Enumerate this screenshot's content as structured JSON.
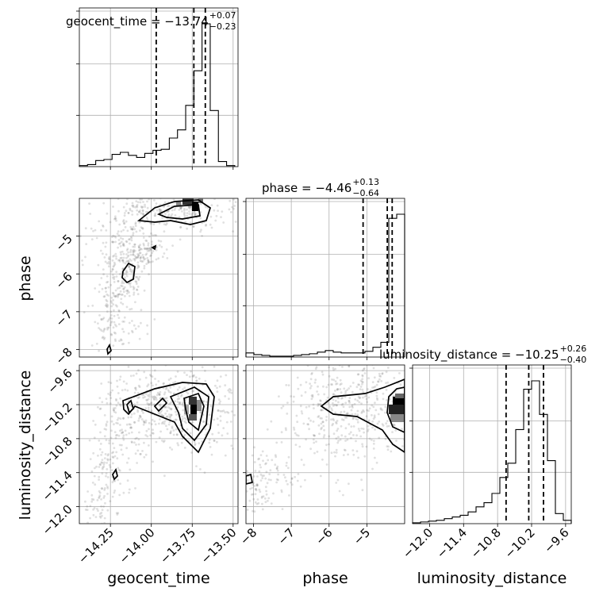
{
  "chart_data": {
    "type": "corner",
    "parameters": [
      {
        "name": "geocent_time",
        "range": [
          -14.44,
          -13.47
        ],
        "ticks": [
          -14.25,
          -14.0,
          -13.75,
          -13.5
        ],
        "tick_labels": [
          "−14.25",
          "−14.00",
          "−13.75",
          "−13.50"
        ],
        "median": -13.74,
        "plus": "+0.07",
        "minus": "−0.23",
        "q16": -13.97,
        "q84": -13.67,
        "title_main": "geocent_time = −13.74",
        "title_up": "+0.07",
        "title_dn": "−0.23"
      },
      {
        "name": "phase",
        "range": [
          -8.2,
          -4.0
        ],
        "ticks": [
          -8,
          -7,
          -6,
          -5
        ],
        "tick_labels": [
          "−8",
          "−7",
          "−6",
          "−5"
        ],
        "median": -4.46,
        "plus": "+0.13",
        "minus": "−0.64",
        "q16": -5.1,
        "q84": -4.33,
        "title_main": "phase = −4.46",
        "title_up": "+0.13",
        "title_dn": "−0.64"
      },
      {
        "name": "luminosity_distance",
        "range": [
          -12.3,
          -9.5
        ],
        "ticks": [
          -12.0,
          -11.4,
          -10.8,
          -10.2,
          -9.6
        ],
        "tick_labels": [
          "−12.0",
          "−11.4",
          "−10.8",
          "−10.2",
          "−9.6"
        ],
        "median": -10.25,
        "plus": "+0.26",
        "minus": "−0.40",
        "q16": -10.65,
        "q84": -9.99,
        "title_main": "luminosity_distance = −10.25",
        "title_up": "+0.26",
        "title_dn": "−0.40"
      }
    ],
    "histograms": [
      {
        "param": "geocent_time",
        "edges": [
          -14.44,
          -14.39,
          -14.34,
          -14.29,
          -14.24,
          -14.19,
          -14.14,
          -14.09,
          -14.04,
          -13.99,
          -13.94,
          -13.89,
          -13.84,
          -13.79,
          -13.74,
          -13.69,
          -13.64,
          -13.59,
          -13.54,
          -13.49
        ],
        "counts": [
          1,
          2,
          6,
          7,
          12,
          14,
          11,
          9,
          13,
          16,
          17,
          28,
          36,
          60,
          94,
          140,
          55,
          5,
          1
        ]
      },
      {
        "param": "phase",
        "edges": [
          -8.2,
          -7.99,
          -7.78,
          -7.57,
          -7.36,
          -7.15,
          -6.94,
          -6.73,
          -6.52,
          -6.31,
          -6.1,
          -5.89,
          -5.68,
          -5.47,
          -5.26,
          -5.05,
          -4.84,
          -4.63,
          -4.42,
          -4.21,
          -4.0
        ],
        "counts": [
          5,
          3,
          2,
          1,
          1,
          1,
          2,
          3,
          4,
          6,
          8,
          6,
          5,
          5,
          5,
          7,
          12,
          18,
          170,
          175
        ]
      },
      {
        "param": "luminosity_distance",
        "edges": [
          -12.3,
          -12.16,
          -12.02,
          -11.88,
          -11.74,
          -11.6,
          -11.46,
          -11.32,
          -11.18,
          -11.04,
          -10.9,
          -10.76,
          -10.62,
          -10.48,
          -10.34,
          -10.2,
          -10.06,
          -9.92,
          -9.78,
          -9.64,
          -9.5
        ],
        "counts": [
          1,
          2,
          3,
          4,
          6,
          8,
          10,
          14,
          20,
          25,
          36,
          55,
          72,
          112,
          160,
          170,
          130,
          75,
          12,
          4
        ]
      }
    ]
  }
}
